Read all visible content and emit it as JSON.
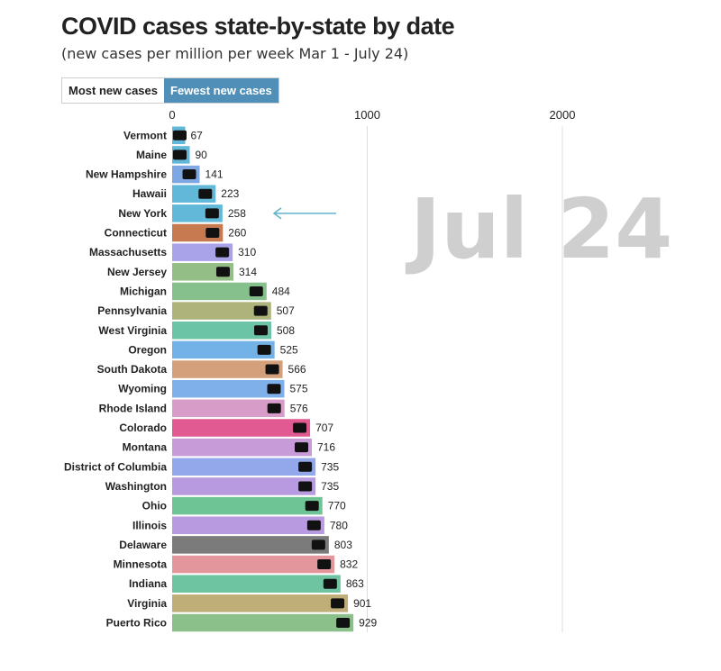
{
  "header": {
    "title": "COVID cases state-by-state by date",
    "subtitle": "(new cases per million per week Mar 1 - July 24)"
  },
  "toggle": {
    "most_label": "Most new cases",
    "fewest_label": "Fewest new cases",
    "selected": "fewest"
  },
  "chart_data": {
    "type": "bar",
    "orientation": "horizontal",
    "date_label": "Jul 24",
    "xlim": [
      0,
      2700
    ],
    "x_ticks": [
      0,
      1000,
      2000
    ],
    "grid": true,
    "highlight": "New York",
    "categories": [
      "Vermont",
      "Maine",
      "New Hampshire",
      "Hawaii",
      "New York",
      "Connecticut",
      "Massachusetts",
      "New Jersey",
      "Michigan",
      "Pennsylvania",
      "West Virginia",
      "Oregon",
      "South Dakota",
      "Wyoming",
      "Rhode Island",
      "Colorado",
      "Montana",
      "District of Columbia",
      "Washington",
      "Ohio",
      "Illinois",
      "Delaware",
      "Minnesota",
      "Indiana",
      "Virginia",
      "Puerto Rico"
    ],
    "values": [
      67,
      90,
      141,
      223,
      258,
      260,
      310,
      314,
      484,
      507,
      508,
      525,
      566,
      575,
      576,
      707,
      716,
      735,
      735,
      770,
      780,
      803,
      832,
      863,
      901,
      929
    ],
    "colors": [
      "#62b8d8",
      "#62b8d8",
      "#7fa8e2",
      "#62b8d8",
      "#62b8d8",
      "#c77a4f",
      "#a9a4ea",
      "#93bf86",
      "#86c08c",
      "#adb37a",
      "#6cc4a6",
      "#72b2e6",
      "#d4a07c",
      "#7fb0ea",
      "#d79cc8",
      "#e15a92",
      "#c79ad8",
      "#93a8ea",
      "#b79ae0",
      "#6ec494",
      "#b79ae0",
      "#7b7b7b",
      "#e3979d",
      "#6ec4a0",
      "#bfae77",
      "#8cc08a"
    ]
  }
}
